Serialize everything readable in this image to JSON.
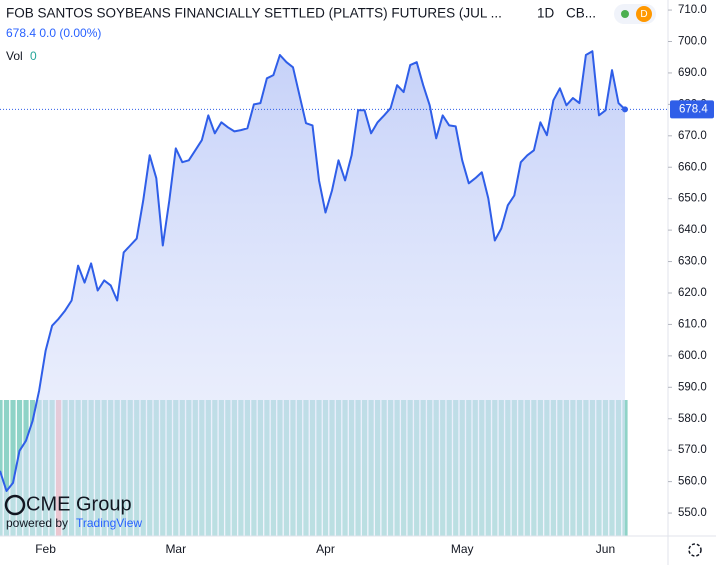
{
  "chart_data": {
    "type": "area",
    "title": "FOB SANTOS SOYBEANS FINANCIALLY SETTLED (PLATTS) FUTURES (JUL ...",
    "interval": "1D",
    "exchange": "CB...",
    "badge": "D",
    "quote": "678.4 0.0 (0.00%)",
    "volume_label": "Vol",
    "volume_value": 0,
    "logo": "CME Group",
    "powered_by": "powered by",
    "brand": "TradingView",
    "categories": [
      null,
      null,
      null,
      null,
      null,
      null,
      null,
      "Feb",
      null,
      null,
      null,
      null,
      null,
      null,
      null,
      null,
      null,
      null,
      null,
      null,
      null,
      null,
      null,
      null,
      null,
      null,
      null,
      "Mar",
      null,
      null,
      null,
      null,
      null,
      null,
      null,
      null,
      null,
      null,
      null,
      null,
      null,
      null,
      null,
      null,
      null,
      null,
      null,
      null,
      null,
      null,
      "Apr",
      null,
      null,
      null,
      null,
      null,
      null,
      null,
      null,
      null,
      null,
      null,
      null,
      null,
      null,
      null,
      null,
      null,
      null,
      null,
      null,
      "May",
      null,
      null,
      null,
      null,
      null,
      null,
      null,
      null,
      null,
      null,
      null,
      null,
      null,
      null,
      null,
      null,
      null,
      null,
      null,
      null,
      null,
      "Jun",
      null,
      null,
      null
    ],
    "series": [
      {
        "name": "FOB SANTOS SOYBEANS",
        "color": "#2f5ee8",
        "fill": "#c9d5fa",
        "values": [
          563.4,
          557.0,
          559.6,
          569.8,
          573.0,
          579.3,
          588.9,
          601.6,
          609.6,
          611.8,
          614.4,
          617.6,
          628.7,
          623.3,
          629.4,
          620.8,
          624.0,
          622.4,
          617.6,
          632.9,
          635.1,
          637.3,
          649.4,
          663.8,
          656.5,
          635.1,
          649.4,
          666.0,
          661.6,
          662.2,
          665.4,
          668.6,
          676.5,
          670.8,
          674.3,
          672.7,
          671.4,
          671.8,
          672.4,
          680.0,
          680.4,
          688.3,
          689.3,
          695.7,
          693.4,
          691.8,
          682.9,
          674.0,
          673.3,
          655.8,
          645.6,
          652.6,
          662.2,
          655.8,
          663.8,
          678.1,
          678.1,
          670.8,
          674.3,
          676.5,
          678.8,
          686.1,
          683.9,
          692.5,
          693.4,
          686.1,
          679.7,
          669.2,
          676.5,
          673.3,
          673.0,
          662.2,
          654.9,
          656.5,
          658.4,
          650.1,
          636.7,
          640.5,
          647.9,
          651.0,
          661.6,
          663.8,
          665.4,
          674.3,
          670.2,
          681.3,
          685.1,
          679.7,
          682.0,
          680.4,
          695.7,
          696.9,
          676.5,
          678.1,
          690.9,
          680.4,
          678.4
        ]
      }
    ],
    "volume": {
      "up_color": "#8fd3c7",
      "down_color": "#f0a3a3",
      "down_index": 9,
      "values": [
        1,
        1,
        1,
        1,
        1,
        1,
        1,
        1,
        1,
        1,
        1,
        1,
        1,
        1,
        1,
        1,
        1,
        1,
        1,
        1,
        1,
        1,
        1,
        1,
        1,
        1,
        1,
        1,
        1,
        1,
        1,
        1,
        1,
        1,
        1,
        1,
        1,
        1,
        1,
        1,
        1,
        1,
        1,
        1,
        1,
        1,
        1,
        1,
        1,
        1,
        1,
        1,
        1,
        1,
        1,
        1,
        1,
        1,
        1,
        1,
        1,
        1,
        1,
        1,
        1,
        1,
        1,
        1,
        1,
        1,
        1,
        1,
        1,
        1,
        1,
        1,
        1,
        1,
        1,
        1,
        1,
        1,
        1,
        1,
        1,
        1,
        1,
        1,
        1,
        1,
        1,
        1,
        1,
        1,
        1,
        1,
        1
      ]
    },
    "ylim": [
      542.7,
      713.2
    ],
    "yticks": [
      {
        "value": 550,
        "label": "550.0"
      },
      {
        "value": 560,
        "label": "560.0"
      },
      {
        "value": 570,
        "label": "570.0"
      },
      {
        "value": 580,
        "label": "580.0"
      },
      {
        "value": 590,
        "label": "590.0"
      },
      {
        "value": 600,
        "label": "600.0"
      },
      {
        "value": 610,
        "label": "610.0"
      },
      {
        "value": 620,
        "label": "620.0"
      },
      {
        "value": 630,
        "label": "630.0"
      },
      {
        "value": 640,
        "label": "640.0"
      },
      {
        "value": 650,
        "label": "650.0"
      },
      {
        "value": 660,
        "label": "660.0"
      },
      {
        "value": 670,
        "label": "670.0"
      },
      {
        "value": 680,
        "label": "680.0"
      },
      {
        "value": 690,
        "label": "690.0"
      },
      {
        "value": 700,
        "label": "700.0"
      },
      {
        "value": 710,
        "label": "710.0"
      }
    ]
  }
}
